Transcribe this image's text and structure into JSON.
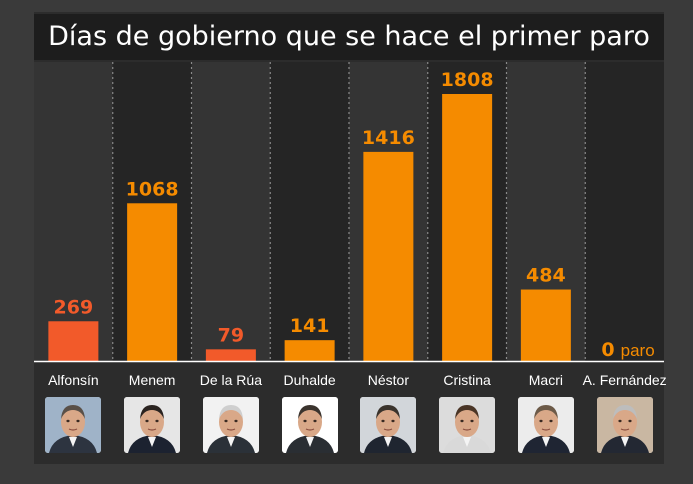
{
  "title": "Días de gobierno que se hace el primer paro",
  "colors": {
    "orange": "#f58b00",
    "red": "#f25a2a",
    "background": "#3a3a3a",
    "panel": "#2c2c2c",
    "column_dark": "#252525",
    "column_light": "#343434"
  },
  "chart_data": {
    "type": "bar",
    "title": "Días de gobierno que se hace el primer paro",
    "categories": [
      "Alfonsín",
      "Menem",
      "De la Rúa",
      "Duhalde",
      "Néstor",
      "Cristina",
      "Macri",
      "A. Fernández"
    ],
    "values": [
      269,
      1068,
      79,
      141,
      1416,
      1808,
      484,
      0
    ],
    "bar_colors": [
      "#f25a2a",
      "#f58b00",
      "#f25a2a",
      "#f58b00",
      "#f58b00",
      "#f58b00",
      "#f58b00",
      "#f58b00"
    ],
    "zero_note": "paro",
    "ylim": [
      0,
      1808
    ],
    "grid": false
  },
  "portraits": [
    {
      "name": "Alfonsín",
      "icon": "portrait-alfonsin-icon",
      "bg": "#9fb3c8",
      "suit": "#2d3440",
      "hair": "#5a5048"
    },
    {
      "name": "Menem",
      "icon": "portrait-menem-icon",
      "bg": "#e6e6e6",
      "suit": "#1c2230",
      "hair": "#2a2320"
    },
    {
      "name": "De la Rúa",
      "icon": "portrait-delarua-icon",
      "bg": "#f2f2f2",
      "suit": "#2b3138",
      "hair": "#cfcfcf"
    },
    {
      "name": "Duhalde",
      "icon": "portrait-duhalde-icon",
      "bg": "#ffffff",
      "suit": "#2a2e33",
      "hair": "#3b342e"
    },
    {
      "name": "Néstor",
      "icon": "portrait-nestor-icon",
      "bg": "#d2d6da",
      "suit": "#1f2530",
      "hair": "#3a332c"
    },
    {
      "name": "Cristina",
      "icon": "portrait-cristina-icon",
      "bg": "#dcdcdc",
      "suit": "#d9d9d9",
      "hair": "#4a3526"
    },
    {
      "name": "Macri",
      "icon": "portrait-macri-icon",
      "bg": "#ececec",
      "suit": "#1f2533",
      "hair": "#6c5a48"
    },
    {
      "name": "A. Fernández",
      "icon": "portrait-afernandez-icon",
      "bg": "#c9b7a2",
      "suit": "#232833",
      "hair": "#bdbdbd"
    }
  ]
}
